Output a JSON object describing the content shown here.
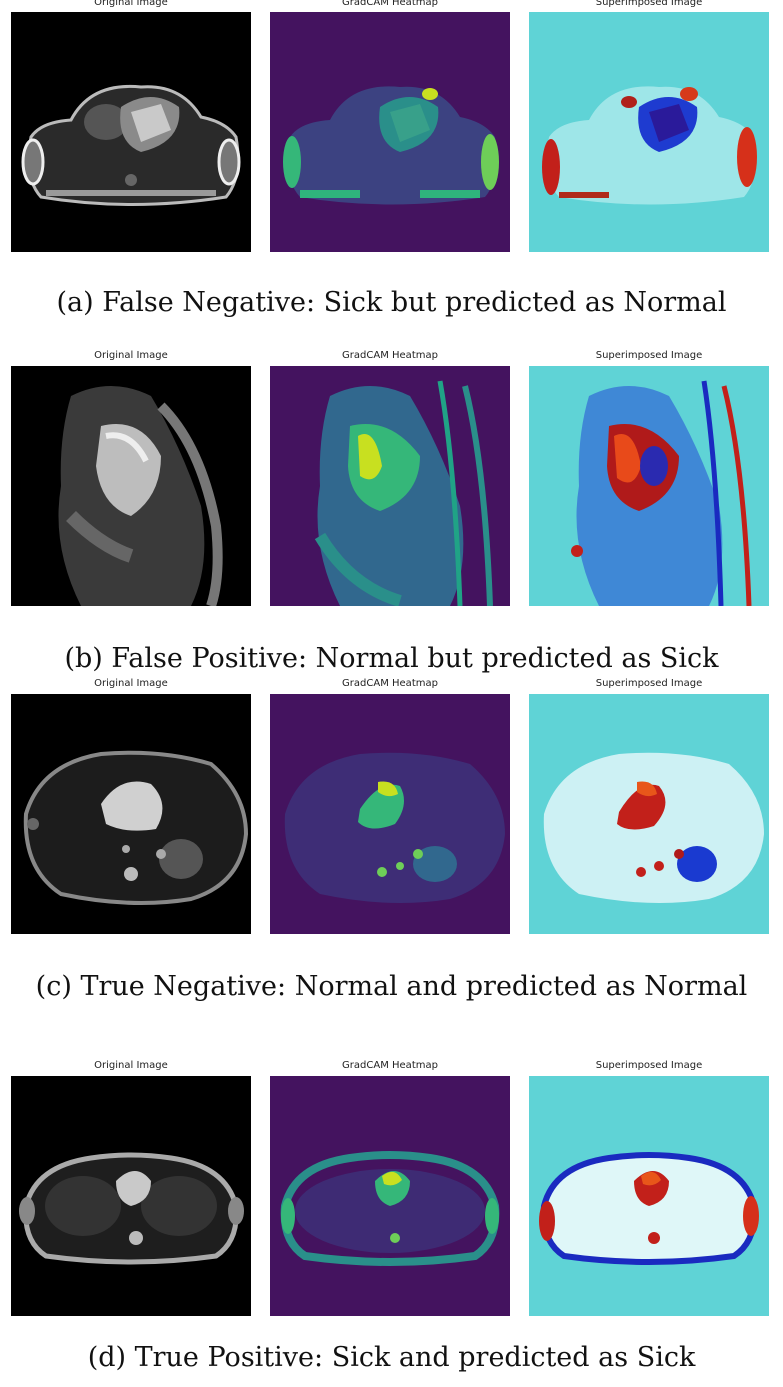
{
  "panel_titles": {
    "original": "Original Image",
    "heatmap": "GradCAM Heatmap",
    "superimposed": "Superimposed Image"
  },
  "figures": [
    {
      "caption": "(a) False Negative: Sick but predicted as Normal"
    },
    {
      "caption": "(b) False Positive: Normal but predicted as Sick"
    },
    {
      "caption": "(c) True Negative: Normal and predicted as Normal"
    },
    {
      "caption": "(d) True Positive: Sick and predicted as Sick"
    }
  ],
  "colors": {
    "heatmap_bg": "#44135f",
    "superimposed_bg": "#5fd3d6",
    "mri_bg": "#000000"
  }
}
